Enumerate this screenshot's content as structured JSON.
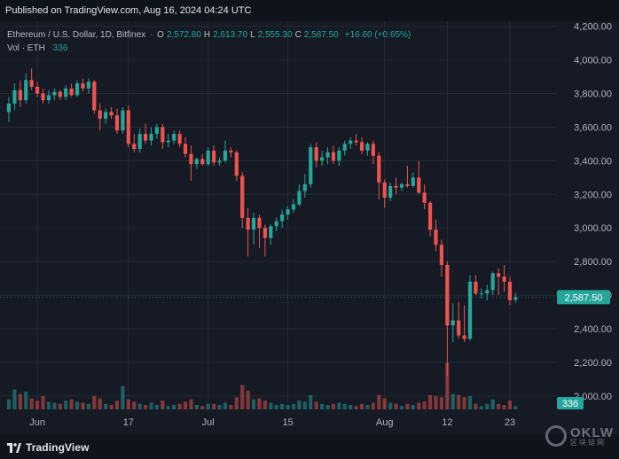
{
  "header": {
    "published": "Published on TradingView.com, Aug 16, 2024 04:24 UTC"
  },
  "legend": {
    "symbol": "Ethereum / U.S. Dollar, 1D, Bitfinex",
    "open_label": "O",
    "open": "2,572.80",
    "high_label": "H",
    "high": "2,613.70",
    "low_label": "L",
    "low": "2,555.30",
    "close_label": "C",
    "close": "2,587.50",
    "change": "+16.60 (+0.65%)",
    "vol_label": "Vol · ETH",
    "vol_value": "336"
  },
  "footer": {
    "brand": "TradingView"
  },
  "watermark": {
    "text": "OKLW",
    "sub": "区块链网"
  },
  "colors": {
    "up": "#26a69a",
    "down": "#ef5350",
    "background": "#151a24",
    "grid": "#242a36"
  },
  "icons": {
    "logo": "tradingview-logo-icon",
    "watermark": "oklw-watermark-icon"
  },
  "chart_data": {
    "type": "candlestick",
    "y_ticks": [
      "2,000.00",
      "2,200.00",
      "2,400.00",
      "2,600.00",
      "2,800.00",
      "3,000.00",
      "3,200.00",
      "3,400.00",
      "3,600.00",
      "3,800.00",
      "4,000.00",
      "4,200.00"
    ],
    "ylim": [
      1920,
      4230
    ],
    "x_ticks": [
      {
        "label": "Jun",
        "index": 5
      },
      {
        "label": "17",
        "index": 21
      },
      {
        "label": "Jul",
        "index": 35
      },
      {
        "label": "15",
        "index": 49
      },
      {
        "label": "Aug",
        "index": 66
      },
      {
        "label": "12",
        "index": 77
      },
      {
        "label": "23",
        "index": 88
      }
    ],
    "last_price": "2,587.50",
    "last_price_value": 2587.5,
    "last_volume": "336",
    "candles": [
      {
        "o": 3690,
        "h": 3780,
        "l": 3630,
        "c": 3740,
        "v": 9
      },
      {
        "o": 3740,
        "h": 3860,
        "l": 3700,
        "c": 3820,
        "v": 18
      },
      {
        "o": 3820,
        "h": 3880,
        "l": 3720,
        "c": 3760,
        "v": 14
      },
      {
        "o": 3760,
        "h": 3920,
        "l": 3740,
        "c": 3880,
        "v": 16
      },
      {
        "o": 3880,
        "h": 3950,
        "l": 3820,
        "c": 3840,
        "v": 10
      },
      {
        "o": 3840,
        "h": 3870,
        "l": 3780,
        "c": 3800,
        "v": 8
      },
      {
        "o": 3800,
        "h": 3830,
        "l": 3740,
        "c": 3760,
        "v": 12
      },
      {
        "o": 3760,
        "h": 3820,
        "l": 3740,
        "c": 3790,
        "v": 7
      },
      {
        "o": 3790,
        "h": 3830,
        "l": 3760,
        "c": 3810,
        "v": 6
      },
      {
        "o": 3810,
        "h": 3820,
        "l": 3760,
        "c": 3780,
        "v": 5
      },
      {
        "o": 3780,
        "h": 3850,
        "l": 3760,
        "c": 3830,
        "v": 8
      },
      {
        "o": 3830,
        "h": 3860,
        "l": 3780,
        "c": 3790,
        "v": 9
      },
      {
        "o": 3790,
        "h": 3880,
        "l": 3780,
        "c": 3860,
        "v": 7
      },
      {
        "o": 3860,
        "h": 3890,
        "l": 3810,
        "c": 3830,
        "v": 6
      },
      {
        "o": 3830,
        "h": 3890,
        "l": 3800,
        "c": 3870,
        "v": 5
      },
      {
        "o": 3870,
        "h": 3880,
        "l": 3680,
        "c": 3700,
        "v": 12
      },
      {
        "o": 3700,
        "h": 3740,
        "l": 3580,
        "c": 3650,
        "v": 10
      },
      {
        "o": 3650,
        "h": 3710,
        "l": 3620,
        "c": 3690,
        "v": 5
      },
      {
        "o": 3690,
        "h": 3720,
        "l": 3650,
        "c": 3670,
        "v": 4
      },
      {
        "o": 3670,
        "h": 3710,
        "l": 3560,
        "c": 3580,
        "v": 8
      },
      {
        "o": 3580,
        "h": 3720,
        "l": 3560,
        "c": 3700,
        "v": 21
      },
      {
        "o": 3700,
        "h": 3730,
        "l": 3480,
        "c": 3500,
        "v": 9
      },
      {
        "o": 3500,
        "h": 3560,
        "l": 3450,
        "c": 3470,
        "v": 7
      },
      {
        "o": 3470,
        "h": 3590,
        "l": 3450,
        "c": 3560,
        "v": 5
      },
      {
        "o": 3560,
        "h": 3620,
        "l": 3500,
        "c": 3520,
        "v": 4
      },
      {
        "o": 3520,
        "h": 3600,
        "l": 3490,
        "c": 3560,
        "v": 6
      },
      {
        "o": 3560,
        "h": 3620,
        "l": 3530,
        "c": 3600,
        "v": 4
      },
      {
        "o": 3600,
        "h": 3620,
        "l": 3470,
        "c": 3510,
        "v": 8
      },
      {
        "o": 3510,
        "h": 3560,
        "l": 3480,
        "c": 3520,
        "v": 3
      },
      {
        "o": 3520,
        "h": 3580,
        "l": 3500,
        "c": 3560,
        "v": 4
      },
      {
        "o": 3560,
        "h": 3580,
        "l": 3480,
        "c": 3500,
        "v": 5
      },
      {
        "o": 3500,
        "h": 3540,
        "l": 3420,
        "c": 3440,
        "v": 7
      },
      {
        "o": 3440,
        "h": 3490,
        "l": 3280,
        "c": 3380,
        "v": 9
      },
      {
        "o": 3380,
        "h": 3420,
        "l": 3350,
        "c": 3410,
        "v": 4
      },
      {
        "o": 3410,
        "h": 3440,
        "l": 3370,
        "c": 3380,
        "v": 3
      },
      {
        "o": 3380,
        "h": 3480,
        "l": 3370,
        "c": 3460,
        "v": 5
      },
      {
        "o": 3460,
        "h": 3490,
        "l": 3370,
        "c": 3390,
        "v": 5
      },
      {
        "o": 3390,
        "h": 3420,
        "l": 3370,
        "c": 3400,
        "v": 4
      },
      {
        "o": 3400,
        "h": 3520,
        "l": 3390,
        "c": 3460,
        "v": 6
      },
      {
        "o": 3460,
        "h": 3480,
        "l": 3420,
        "c": 3450,
        "v": 4
      },
      {
        "o": 3450,
        "h": 3460,
        "l": 3280,
        "c": 3310,
        "v": 11
      },
      {
        "o": 3310,
        "h": 3330,
        "l": 3000,
        "c": 3060,
        "v": 22
      },
      {
        "o": 3060,
        "h": 3120,
        "l": 2830,
        "c": 2990,
        "v": 17
      },
      {
        "o": 2990,
        "h": 3090,
        "l": 2900,
        "c": 3060,
        "v": 9
      },
      {
        "o": 3060,
        "h": 3080,
        "l": 2880,
        "c": 3000,
        "v": 10
      },
      {
        "o": 3000,
        "h": 3020,
        "l": 2830,
        "c": 2940,
        "v": 8
      },
      {
        "o": 2940,
        "h": 3020,
        "l": 2900,
        "c": 3010,
        "v": 6
      },
      {
        "o": 3010,
        "h": 3060,
        "l": 2980,
        "c": 3040,
        "v": 4
      },
      {
        "o": 3040,
        "h": 3110,
        "l": 3000,
        "c": 3080,
        "v": 5
      },
      {
        "o": 3080,
        "h": 3130,
        "l": 3050,
        "c": 3110,
        "v": 4
      },
      {
        "o": 3110,
        "h": 3170,
        "l": 3090,
        "c": 3140,
        "v": 5
      },
      {
        "o": 3140,
        "h": 3260,
        "l": 3130,
        "c": 3220,
        "v": 8
      },
      {
        "o": 3220,
        "h": 3320,
        "l": 3180,
        "c": 3260,
        "v": 7
      },
      {
        "o": 3260,
        "h": 3500,
        "l": 3240,
        "c": 3480,
        "v": 13
      },
      {
        "o": 3480,
        "h": 3510,
        "l": 3360,
        "c": 3400,
        "v": 7
      },
      {
        "o": 3400,
        "h": 3460,
        "l": 3370,
        "c": 3420,
        "v": 5
      },
      {
        "o": 3420,
        "h": 3480,
        "l": 3380,
        "c": 3450,
        "v": 4
      },
      {
        "o": 3450,
        "h": 3490,
        "l": 3380,
        "c": 3400,
        "v": 5
      },
      {
        "o": 3400,
        "h": 3480,
        "l": 3370,
        "c": 3460,
        "v": 6
      },
      {
        "o": 3460,
        "h": 3520,
        "l": 3430,
        "c": 3500,
        "v": 5
      },
      {
        "o": 3500,
        "h": 3540,
        "l": 3470,
        "c": 3520,
        "v": 4
      },
      {
        "o": 3520,
        "h": 3560,
        "l": 3490,
        "c": 3510,
        "v": 3
      },
      {
        "o": 3510,
        "h": 3540,
        "l": 3440,
        "c": 3460,
        "v": 5
      },
      {
        "o": 3460,
        "h": 3510,
        "l": 3430,
        "c": 3500,
        "v": 4
      },
      {
        "o": 3500,
        "h": 3520,
        "l": 3380,
        "c": 3430,
        "v": 6
      },
      {
        "o": 3430,
        "h": 3450,
        "l": 3170,
        "c": 3270,
        "v": 13
      },
      {
        "o": 3270,
        "h": 3290,
        "l": 3120,
        "c": 3180,
        "v": 10
      },
      {
        "o": 3180,
        "h": 3270,
        "l": 3160,
        "c": 3250,
        "v": 6
      },
      {
        "o": 3250,
        "h": 3300,
        "l": 3200,
        "c": 3240,
        "v": 5
      },
      {
        "o": 3240,
        "h": 3270,
        "l": 3220,
        "c": 3260,
        "v": 3
      },
      {
        "o": 3260,
        "h": 3370,
        "l": 3240,
        "c": 3250,
        "v": 5
      },
      {
        "o": 3250,
        "h": 3330,
        "l": 3240,
        "c": 3300,
        "v": 4
      },
      {
        "o": 3300,
        "h": 3400,
        "l": 3200,
        "c": 3210,
        "v": 6
      },
      {
        "o": 3210,
        "h": 3260,
        "l": 3110,
        "c": 3150,
        "v": 7
      },
      {
        "o": 3150,
        "h": 3160,
        "l": 2950,
        "c": 2990,
        "v": 13
      },
      {
        "o": 2990,
        "h": 3050,
        "l": 2860,
        "c": 2900,
        "v": 12
      },
      {
        "o": 2900,
        "h": 2930,
        "l": 2710,
        "c": 2780,
        "v": 11
      },
      {
        "o": 2780,
        "h": 2800,
        "l": 2120,
        "c": 2420,
        "v": 42
      },
      {
        "o": 2420,
        "h": 2550,
        "l": 2320,
        "c": 2450,
        "v": 14
      },
      {
        "o": 2450,
        "h": 2560,
        "l": 2340,
        "c": 2360,
        "v": 13
      },
      {
        "o": 2360,
        "h": 2540,
        "l": 2320,
        "c": 2340,
        "v": 11
      },
      {
        "o": 2340,
        "h": 2720,
        "l": 2330,
        "c": 2680,
        "v": 12
      },
      {
        "o": 2680,
        "h": 2720,
        "l": 2600,
        "c": 2610,
        "v": 5
      },
      {
        "o": 2610,
        "h": 2640,
        "l": 2580,
        "c": 2610,
        "v": 3
      },
      {
        "o": 2610,
        "h": 2660,
        "l": 2570,
        "c": 2630,
        "v": 5
      },
      {
        "o": 2630,
        "h": 2740,
        "l": 2600,
        "c": 2730,
        "v": 9
      },
      {
        "o": 2730,
        "h": 2760,
        "l": 2600,
        "c": 2710,
        "v": 5
      },
      {
        "o": 2710,
        "h": 2780,
        "l": 2620,
        "c": 2680,
        "v": 4
      },
      {
        "o": 2680,
        "h": 2710,
        "l": 2540,
        "c": 2570,
        "v": 8
      },
      {
        "o": 2572.8,
        "h": 2613.7,
        "l": 2555.3,
        "c": 2587.5,
        "v": 3
      }
    ]
  }
}
